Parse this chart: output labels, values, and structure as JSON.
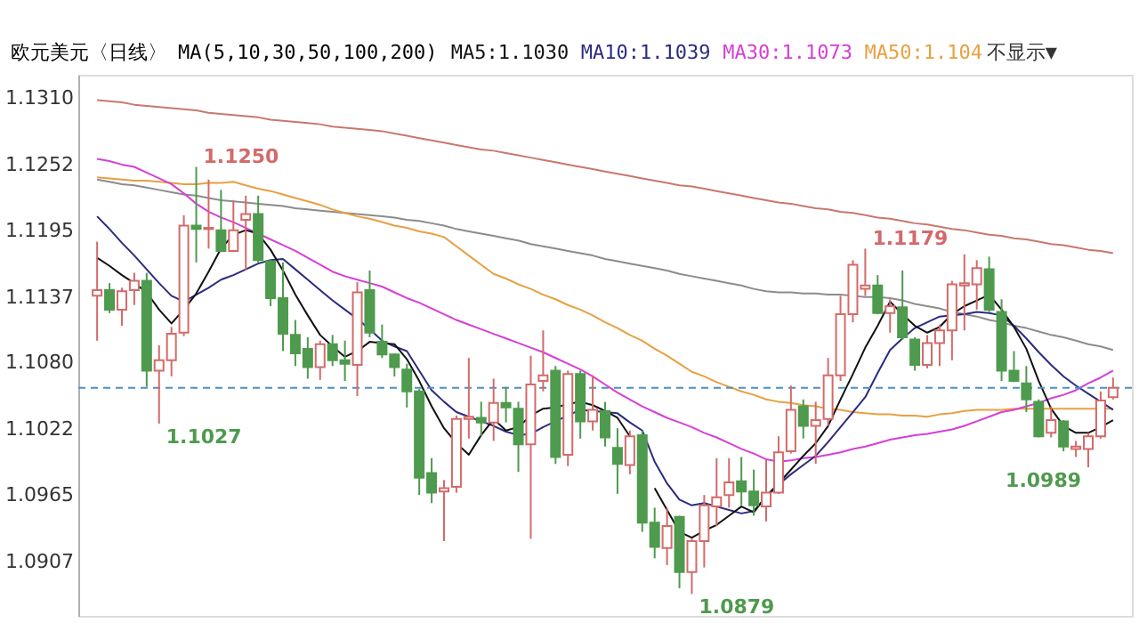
{
  "chart_data": {
    "type": "candlestick",
    "title": "欧元美元〈日线〉",
    "categories": [
      null,
      null,
      null,
      null,
      null,
      null,
      null,
      null,
      null,
      null,
      null,
      null,
      null,
      null,
      null,
      null,
      null,
      null,
      null,
      null,
      null,
      null,
      null,
      null,
      null,
      null,
      null,
      null,
      null,
      null,
      null,
      null,
      null,
      null,
      null,
      null,
      null,
      null,
      null,
      null,
      null,
      null,
      null,
      null,
      null,
      null,
      null,
      null,
      null,
      null,
      null,
      null,
      null,
      null,
      null,
      null,
      null,
      null,
      null,
      null,
      null,
      null,
      null,
      null,
      null,
      null,
      null,
      null,
      null,
      null,
      null,
      null,
      null,
      null,
      null,
      null,
      null,
      null,
      null,
      null,
      null,
      null,
      null
    ],
    "ohlc": [
      [
        1.1138,
        1.1185,
        1.1099,
        1.1143
      ],
      [
        1.1143,
        1.1149,
        1.1123,
        1.1126
      ],
      [
        1.1126,
        1.1145,
        1.1112,
        1.1142
      ],
      [
        1.1143,
        1.1158,
        1.113,
        1.1151
      ],
      [
        1.1151,
        1.1158,
        1.1059,
        1.1073
      ],
      [
        1.1073,
        1.1095,
        1.1027,
        1.1082
      ],
      [
        1.1082,
        1.1111,
        1.1068,
        1.1105
      ],
      [
        1.1106,
        1.1208,
        1.1103,
        1.1199
      ],
      [
        1.1199,
        1.125,
        1.1167,
        1.1196
      ],
      [
        1.1196,
        1.1239,
        1.1179,
        1.1197
      ],
      [
        1.1195,
        1.123,
        1.1176,
        1.1177
      ],
      [
        1.1177,
        1.1221,
        1.1176,
        1.1195
      ],
      [
        1.1204,
        1.1225,
        1.116,
        1.1209
      ],
      [
        1.1209,
        1.1225,
        1.1167,
        1.1169
      ],
      [
        1.1168,
        1.1169,
        1.1129,
        1.1136
      ],
      [
        1.1136,
        1.1167,
        1.109,
        1.1105
      ],
      [
        1.1104,
        1.1117,
        1.1077,
        1.1088
      ],
      [
        1.1092,
        1.1102,
        1.1066,
        1.1076
      ],
      [
        1.1076,
        1.1099,
        1.1065,
        1.1096
      ],
      [
        1.1096,
        1.1104,
        1.1077,
        1.1082
      ],
      [
        1.1082,
        1.1099,
        1.1064,
        1.1079
      ],
      [
        1.1078,
        1.115,
        1.1051,
        1.1141
      ],
      [
        1.1143,
        1.116,
        1.1102,
        1.1106
      ],
      [
        1.1098,
        1.1113,
        1.1084,
        1.1087
      ],
      [
        1.1087,
        1.1088,
        1.1068,
        1.1076
      ],
      [
        1.1074,
        1.1079,
        1.1041,
        1.1055
      ],
      [
        1.1055,
        1.1057,
        1.0965,
        1.098
      ],
      [
        1.0984,
        1.0997,
        1.0958,
        1.0967
      ],
      [
        1.0968,
        1.0978,
        1.0925,
        1.0971
      ],
      [
        1.0972,
        1.1034,
        1.0967,
        1.1031
      ],
      [
        1.1031,
        1.1084,
        1.1014,
        1.1033
      ],
      [
        1.1032,
        1.1046,
        1.1016,
        1.1028
      ],
      [
        1.1028,
        1.1066,
        1.1012,
        1.1045
      ],
      [
        1.1045,
        1.1059,
        1.1028,
        1.1041
      ],
      [
        1.104,
        1.1046,
        1.0985,
        1.1009
      ],
      [
        1.1009,
        1.1086,
        1.0927,
        1.1061
      ],
      [
        1.1064,
        1.1108,
        1.1055,
        1.1069
      ],
      [
        1.1073,
        1.1077,
        1.0992,
        1.0998
      ],
      [
        1.1,
        1.1073,
        1.099,
        1.107
      ],
      [
        1.107,
        1.1073,
        1.1014,
        1.1029
      ],
      [
        1.1029,
        1.1069,
        1.1021,
        1.1039
      ],
      [
        1.1038,
        1.1046,
        1.1007,
        1.1015
      ],
      [
        1.1006,
        1.1023,
        1.0966,
        1.0992
      ],
      [
        1.0991,
        1.1021,
        1.0983,
        1.1016
      ],
      [
        1.1017,
        1.1021,
        1.0933,
        1.0941
      ],
      [
        1.0941,
        1.0954,
        1.091,
        1.092
      ],
      [
        1.0919,
        1.0954,
        1.0904,
        1.0938
      ],
      [
        1.0946,
        1.0947,
        1.0884,
        1.0898
      ],
      [
        1.0898,
        1.0927,
        1.0879,
        1.0925
      ],
      [
        1.0925,
        1.0965,
        1.0902,
        1.0956
      ],
      [
        1.0955,
        1.0997,
        1.0938,
        1.0963
      ],
      [
        1.0965,
        1.0997,
        1.0954,
        1.0976
      ],
      [
        1.0977,
        1.0998,
        1.0956,
        1.0968
      ],
      [
        1.0968,
        1.0987,
        1.0947,
        1.0956
      ],
      [
        1.0955,
        1.0996,
        1.0942,
        1.0967
      ],
      [
        1.0967,
        1.1016,
        1.0966,
        1.1002
      ],
      [
        1.1003,
        1.106,
        1.1001,
        1.1039
      ],
      [
        1.1042,
        1.1048,
        1.1014,
        1.1025
      ],
      [
        1.1025,
        1.1046,
        1.0992,
        1.103
      ],
      [
        1.1031,
        1.1084,
        1.1025,
        1.1069
      ],
      [
        1.1069,
        1.1138,
        1.1064,
        1.1122
      ],
      [
        1.1122,
        1.1169,
        1.1115,
        1.1165
      ],
      [
        1.1144,
        1.1179,
        1.1138,
        1.1147
      ],
      [
        1.1147,
        1.1156,
        1.1122,
        1.1123
      ],
      [
        1.1123,
        1.1135,
        1.1106,
        1.1129
      ],
      [
        1.1128,
        1.116,
        1.11,
        1.1102
      ],
      [
        1.11,
        1.1102,
        1.1073,
        1.1078
      ],
      [
        1.1078,
        1.1104,
        1.1075,
        1.1097
      ],
      [
        1.1097,
        1.1113,
        1.1077,
        1.1108
      ],
      [
        1.1108,
        1.1151,
        1.1082,
        1.1148
      ],
      [
        1.1147,
        1.1174,
        1.1108,
        1.1149
      ],
      [
        1.1148,
        1.1169,
        1.1126,
        1.1162
      ],
      [
        1.1161,
        1.1172,
        1.1124,
        1.1126
      ],
      [
        1.1124,
        1.1135,
        1.1064,
        1.1073
      ],
      [
        1.1073,
        1.109,
        1.1063,
        1.1064
      ],
      [
        1.1062,
        1.1077,
        1.1037,
        1.1048
      ],
      [
        1.1046,
        1.1048,
        1.1015,
        1.1016
      ],
      [
        1.1019,
        1.1042,
        1.1015,
        1.103
      ],
      [
        1.1029,
        1.103,
        1.1003,
        1.1007
      ],
      [
        1.1005,
        1.1012,
        1.0998,
        1.1007
      ],
      [
        1.1005,
        1.1019,
        1.0989,
        1.1016
      ],
      [
        1.1016,
        1.1055,
        1.1014,
        1.1047
      ],
      [
        1.105,
        1.1067,
        1.1048,
        1.1058
      ]
    ],
    "colors": [
      "#d46a6a",
      "#4e9a4e",
      "#d46a6a",
      "#d46a6a",
      "#4e9a4e",
      "#d46a6a",
      "#d46a6a",
      "#d46a6a",
      "#4e9a4e",
      "#d46a6a",
      "#4e9a4e",
      "#d46a6a",
      "#d46a6a",
      "#4e9a4e",
      "#4e9a4e",
      "#4e9a4e",
      "#4e9a4e",
      "#4e9a4e",
      "#d46a6a",
      "#4e9a4e",
      "#4e9a4e",
      "#d46a6a",
      "#4e9a4e",
      "#4e9a4e",
      "#4e9a4e",
      "#4e9a4e",
      "#4e9a4e",
      "#4e9a4e",
      "#d46a6a",
      "#d46a6a",
      "#d46a6a",
      "#4e9a4e",
      "#d46a6a",
      "#4e9a4e",
      "#4e9a4e",
      "#d46a6a",
      "#d46a6a",
      "#4e9a4e",
      "#d46a6a",
      "#4e9a4e",
      "#d46a6a",
      "#4e9a4e",
      "#4e9a4e",
      "#d46a6a",
      "#4e9a4e",
      "#4e9a4e",
      "#d46a6a",
      "#4e9a4e",
      "#d46a6a",
      "#d46a6a",
      "#d46a6a",
      "#d46a6a",
      "#4e9a4e",
      "#4e9a4e",
      "#d46a6a",
      "#d46a6a",
      "#d46a6a",
      "#4e9a4e",
      "#d46a6a",
      "#d46a6a",
      "#d46a6a",
      "#d46a6a",
      "#d46a6a",
      "#4e9a4e",
      "#d46a6a",
      "#4e9a4e",
      "#4e9a4e",
      "#d46a6a",
      "#d46a6a",
      "#d46a6a",
      "#d46a6a",
      "#d46a6a",
      "#4e9a4e",
      "#4e9a4e",
      "#4e9a4e",
      "#4e9a4e",
      "#4e9a4e",
      "#d46a6a",
      "#4e9a4e",
      "#d46a6a",
      "#d46a6a",
      "#d46a6a",
      "#d46a6a"
    ],
    "series": [
      {
        "type": "line",
        "color": "#c8786e",
        "values": [
          1.1308,
          1.1307,
          1.1306,
          1.1304,
          1.1303,
          1.1302,
          1.1301,
          1.13,
          1.1299,
          1.1297,
          1.1296,
          1.1295,
          1.1294,
          1.1293,
          1.1291,
          1.129,
          1.1289,
          1.1288,
          1.1287,
          1.1285,
          1.1284,
          1.1283,
          1.1282,
          1.1281,
          1.1279,
          1.1277,
          1.1275,
          1.1273,
          1.1271,
          1.1269,
          1.1267,
          1.1265,
          1.1264,
          1.1262,
          1.126,
          1.1258,
          1.1256,
          1.1254,
          1.1252,
          1.125,
          1.1248,
          1.1246,
          1.1244,
          1.1242,
          1.124,
          1.1238,
          1.1236,
          1.1234,
          1.1233,
          1.1231,
          1.1229,
          1.1227,
          1.1225,
          1.1223,
          1.1221,
          1.1219,
          1.1218,
          1.1216,
          1.1214,
          1.1213,
          1.1211,
          1.121,
          1.1208,
          1.1206,
          1.1205,
          1.1203,
          1.1201,
          1.12,
          1.1198,
          1.1196,
          1.1195,
          1.1193,
          1.1191,
          1.119,
          1.1188,
          1.1187,
          1.1185,
          1.1183,
          1.1182,
          1.118,
          1.1178,
          1.1177,
          1.1175
        ]
      },
      {
        "type": "line",
        "color": "#8c8c8c",
        "values": [
          1.1239,
          1.1237,
          1.1235,
          1.1234,
          1.1232,
          1.123,
          1.1228,
          1.1226,
          1.1225,
          1.1223,
          1.1221,
          1.122,
          1.1219,
          1.1218,
          1.1217,
          1.1216,
          1.1214,
          1.1213,
          1.1212,
          1.1211,
          1.121,
          1.1209,
          1.1208,
          1.1207,
          1.1206,
          1.1204,
          1.1203,
          1.1201,
          1.1199,
          1.1196,
          1.1194,
          1.1192,
          1.119,
          1.1188,
          1.1186,
          1.1183,
          1.1181,
          1.1179,
          1.1177,
          1.1175,
          1.1173,
          1.117,
          1.1168,
          1.1166,
          1.1164,
          1.1162,
          1.116,
          1.1157,
          1.1155,
          1.1153,
          1.1151,
          1.1149,
          1.1147,
          1.1144,
          1.1142,
          1.1141,
          1.1141,
          1.114,
          1.114,
          1.1139,
          1.1139,
          1.1138,
          1.1137,
          1.1137,
          1.1136,
          1.1134,
          1.1131,
          1.1129,
          1.1127,
          1.1124,
          1.1122,
          1.112,
          1.1117,
          1.1115,
          1.1112,
          1.111,
          1.1107,
          1.1104,
          1.1102,
          1.1099,
          1.1096,
          1.1094,
          1.1091
        ]
      },
      {
        "type": "line",
        "name": "MA50:1.104",
        "color": "#e8a040",
        "values": [
          1.1241,
          1.124,
          1.1239,
          1.1238,
          1.1238,
          1.1237,
          1.1236,
          1.1235,
          1.1235,
          1.1236,
          1.1236,
          1.1237,
          1.1234,
          1.1231,
          1.1229,
          1.1226,
          1.1223,
          1.122,
          1.1217,
          1.1213,
          1.121,
          1.1207,
          1.1205,
          1.1202,
          1.1199,
          1.1197,
          1.1194,
          1.1192,
          1.1189,
          1.1181,
          1.1173,
          1.1165,
          1.1157,
          1.1153,
          1.1148,
          1.1144,
          1.1139,
          1.1135,
          1.113,
          1.1126,
          1.1121,
          1.1115,
          1.111,
          1.1104,
          1.1099,
          1.1092,
          1.1086,
          1.1079,
          1.1072,
          1.1068,
          1.1063,
          1.1059,
          1.1055,
          1.1052,
          1.1048,
          1.1046,
          1.1045,
          1.1043,
          1.1042,
          1.104,
          1.1039,
          1.1037,
          1.1036,
          1.1035,
          1.1035,
          1.1034,
          1.1034,
          1.1033,
          1.1035,
          1.1036,
          1.1038,
          1.1039,
          1.1039,
          1.1039,
          1.104,
          1.104,
          1.104,
          1.104,
          1.104,
          1.104,
          1.104,
          1.104,
          1.104
        ]
      },
      {
        "type": "line",
        "name": "MA30:1.1073",
        "color": "#d63fd6",
        "values": [
          1.1257,
          1.1255,
          1.1252,
          1.125,
          1.1245,
          1.124,
          1.1235,
          1.1227,
          1.1218,
          1.1211,
          1.1206,
          1.1202,
          1.1197,
          1.1192,
          1.1187,
          1.1182,
          1.1177,
          1.1171,
          1.1165,
          1.1159,
          1.1155,
          1.1152,
          1.1149,
          1.1146,
          1.1141,
          1.1136,
          1.1132,
          1.1127,
          1.1122,
          1.1117,
          1.1113,
          1.1109,
          1.1105,
          1.1101,
          1.1097,
          1.1093,
          1.1089,
          1.1084,
          1.1079,
          1.1074,
          1.1068,
          1.1061,
          1.1054,
          1.1048,
          1.1042,
          1.1037,
          1.1032,
          1.1028,
          1.1024,
          1.1019,
          1.1015,
          1.101,
          1.1005,
          1.1001,
          1.0996,
          1.0994,
          1.0995,
          1.0997,
          1.0998,
          1.1,
          1.1002,
          1.1005,
          1.1007,
          1.101,
          1.1013,
          1.1015,
          1.1017,
          1.1018,
          1.102,
          1.1022,
          1.1025,
          1.1029,
          1.1033,
          1.1037,
          1.1039,
          1.1042,
          1.1045,
          1.1049,
          1.1052,
          1.1056,
          1.1062,
          1.1067,
          1.1073
        ]
      },
      {
        "type": "line",
        "name": "MA10:1.1039",
        "color": "#2b2b80",
        "values": [
          1.1207,
          1.1196,
          1.1184,
          1.1173,
          1.1161,
          1.1149,
          1.1138,
          1.1133,
          1.1139,
          1.1145,
          1.1152,
          1.1156,
          1.1161,
          1.1166,
          1.1169,
          1.117,
          1.1161,
          1.1152,
          1.1143,
          1.1134,
          1.1126,
          1.1118,
          1.1109,
          1.1099,
          1.1094,
          1.109,
          1.1073,
          1.1056,
          1.1046,
          1.1037,
          1.1033,
          1.1029,
          1.1025,
          1.102,
          1.1017,
          1.1018,
          1.1024,
          1.1029,
          1.1034,
          1.1039,
          1.1038,
          1.1037,
          1.1036,
          1.1028,
          1.1021,
          1.0994,
          1.0975,
          1.0961,
          1.0956,
          1.0958,
          1.0955,
          1.0952,
          1.0949,
          1.0951,
          1.0963,
          1.0974,
          1.0983,
          1.0991,
          1.0999,
          1.1011,
          1.1024,
          1.1037,
          1.105,
          1.1071,
          1.1091,
          1.1101,
          1.111,
          1.1115,
          1.112,
          1.1121,
          1.1122,
          1.1124,
          1.1123,
          1.1121,
          1.1112,
          1.1101,
          1.1089,
          1.1078,
          1.1068,
          1.106,
          1.1053,
          1.1046,
          1.1039
        ]
      },
      {
        "type": "line",
        "name": "MA5:1.1030",
        "color": "#111111",
        "values": [
          1.1171,
          1.1164,
          1.1156,
          1.1149,
          1.1141,
          1.1126,
          1.1114,
          1.1126,
          1.114,
          1.1159,
          1.1179,
          1.1191,
          1.1195,
          1.1192,
          1.1178,
          1.116,
          1.1139,
          1.1121,
          1.1104,
          1.1094,
          1.1085,
          1.109,
          1.1098,
          1.1097,
          1.1096,
          1.1083,
          1.1064,
          1.1042,
          1.1023,
          1.101,
          1.1,
          1.1017,
          1.1031,
          1.1021,
          1.1024,
          1.1034,
          1.104,
          1.1041,
          1.1044,
          1.1046,
          1.1043,
          1.1038,
          1.1032,
          1.1016,
          null,
          1.0971,
          1.0952,
          1.0933,
          1.0928,
          1.0934,
          1.0939,
          1.0947,
          1.0955,
          1.095,
          1.0964,
          1.0975,
          1.0987,
          1.0999,
          1.101,
          1.1025,
          1.1048,
          1.107,
          1.1093,
          1.1112,
          1.1133,
          1.1122,
          1.1112,
          1.1106,
          1.1111,
          1.1122,
          1.1129,
          1.1134,
          1.1139,
          1.1126,
          1.1111,
          1.1092,
          1.1064,
          1.104,
          1.1025,
          1.1019,
          1.1019,
          1.1024,
          1.103
        ]
      }
    ],
    "ylim": [
      1.086,
      1.133
    ],
    "yticks": [
      1.0907,
      1.0965,
      1.1022,
      {
        "value": 1.108,
        "label": "1.1080"
      },
      1.1137,
      1.1195,
      1.1252,
      {
        "value": 1.131,
        "label": "1.1310"
      }
    ],
    "tick_labels": "y",
    "legend": "top",
    "ref_lines": [
      {
        "axis": "y",
        "value": 1.1058,
        "color": "#4a90c8",
        "line_style": "dashed"
      }
    ],
    "annotations": [
      "MA(5,10,30,50,100,200)",
      "1.1250",
      "1.1027",
      "1.1179",
      "1.0879",
      "1.0989",
      "不显示▼"
    ]
  }
}
